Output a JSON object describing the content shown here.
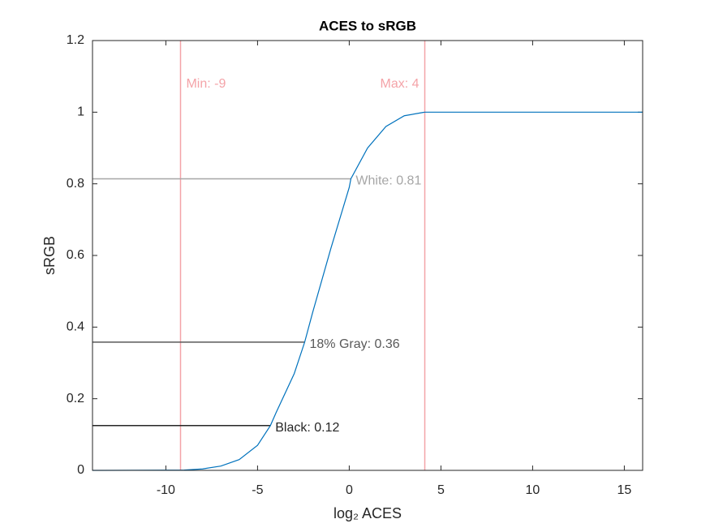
{
  "chart_data": {
    "type": "line",
    "title": "ACES to sRGB",
    "xlabel": "log₂ ACES",
    "ylabel": "sRGB",
    "xlim": [
      -14,
      16
    ],
    "ylim": [
      0,
      1.2
    ],
    "xticks": [
      -10,
      -5,
      0,
      5,
      10,
      15
    ],
    "yticks": [
      0,
      0.2,
      0.4,
      0.6,
      0.8,
      1,
      1.2
    ],
    "series": [
      {
        "color": "#0072bd",
        "x": [
          -14,
          -10,
          -9,
          -8,
          -7,
          -6,
          -5,
          -4.3,
          -4,
          -3,
          -2.43,
          -2,
          -1,
          0,
          0.09,
          1,
          2,
          3,
          4,
          4.12,
          16
        ],
        "values": [
          0,
          0.0005,
          0.001,
          0.004,
          0.012,
          0.03,
          0.07,
          0.125,
          0.16,
          0.27,
          0.358,
          0.44,
          0.62,
          0.79,
          0.814,
          0.9,
          0.96,
          0.99,
          0.999,
          1,
          1
        ]
      }
    ],
    "vlines": [
      {
        "x": -9.2,
        "label": "Min: -9",
        "color": "#f4a3a8"
      },
      {
        "x": 4.12,
        "label": "Max: 4",
        "color": "#f4a3a8"
      }
    ],
    "hlines": [
      {
        "y": 0.814,
        "x_end": 0.09,
        "label": "White: 0.81",
        "color": "#a6a6a6"
      },
      {
        "y": 0.358,
        "x_end": -2.43,
        "label": "18% Gray: 0.36",
        "color": "#595959"
      },
      {
        "y": 0.125,
        "x_end": -4.3,
        "label": "Black: 0.12",
        "color": "#262626"
      }
    ]
  }
}
